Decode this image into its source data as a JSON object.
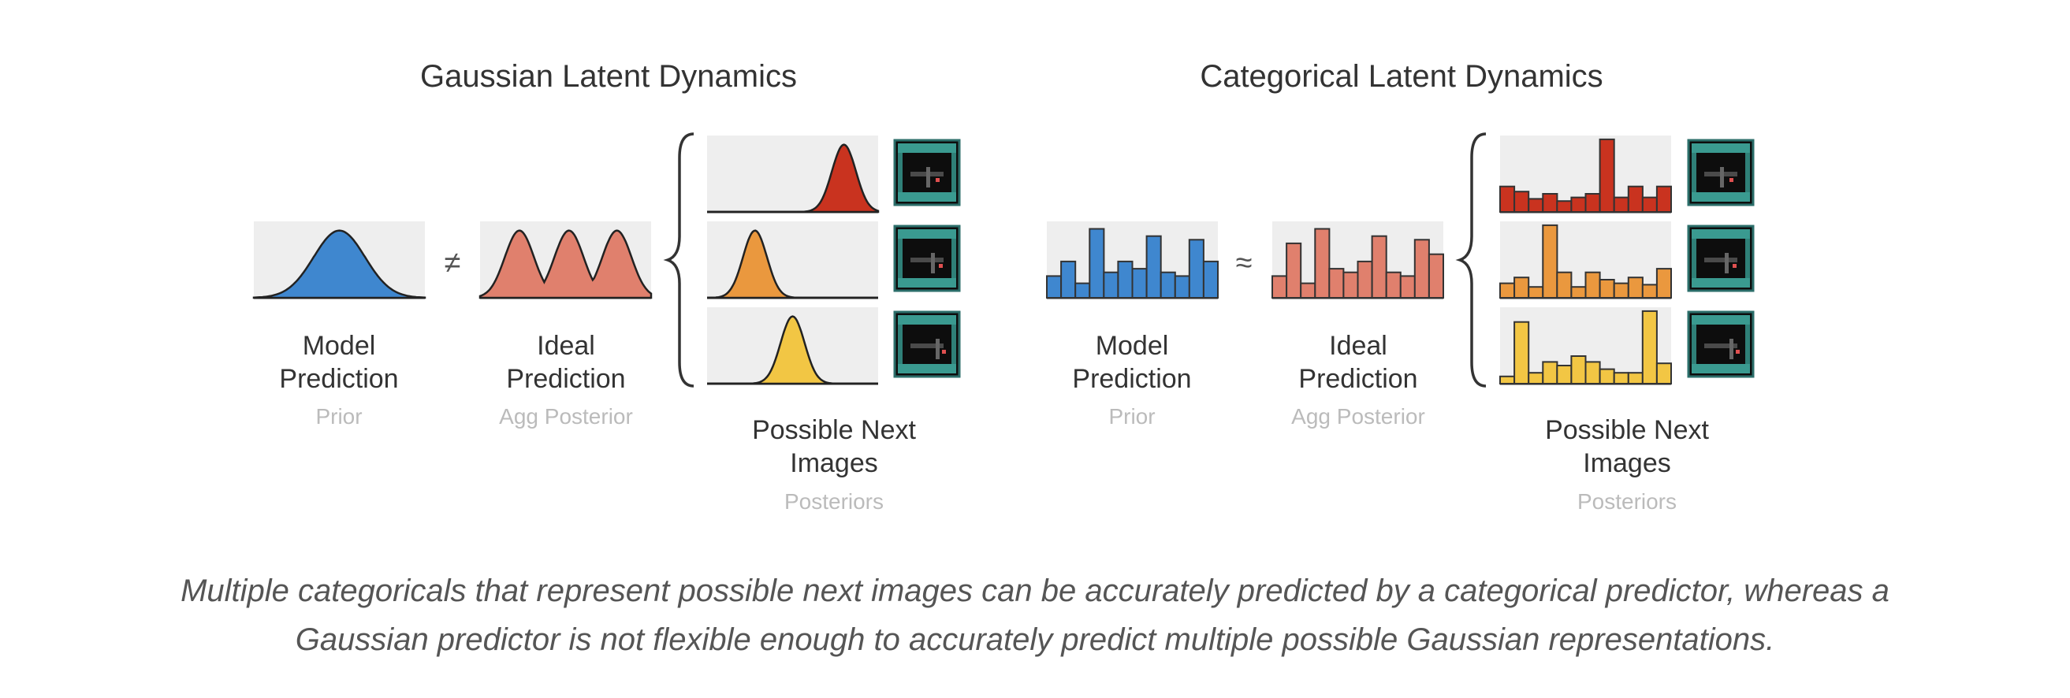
{
  "panels": [
    {
      "title": "Gaussian Latent Dynamics",
      "type": "gaussian",
      "operator": "≠",
      "model": {
        "label1": "Model",
        "label2": "Prediction",
        "sub": "Prior"
      },
      "ideal": {
        "label1": "Ideal",
        "label2": "Prediction",
        "sub": "Agg Posterior"
      },
      "next": {
        "label1": "Possible Next",
        "label2": "Images",
        "sub": "Posteriors"
      },
      "model_dist": {
        "peaks": [
          0.5
        ]
      },
      "ideal_dist": {
        "peaks": [
          0.23,
          0.52,
          0.8
        ]
      },
      "posteriors": [
        {
          "peaks": [
            0.8
          ]
        },
        {
          "peaks": [
            0.28
          ]
        },
        {
          "peaks": [
            0.5
          ]
        }
      ]
    },
    {
      "title": "Categorical Latent Dynamics",
      "type": "categorical",
      "operator": "≈",
      "model": {
        "label1": "Model",
        "label2": "Prediction",
        "sub": "Prior"
      },
      "ideal": {
        "label1": "Ideal",
        "label2": "Prediction",
        "sub": "Agg Posterior"
      },
      "next": {
        "label1": "Possible Next",
        "label2": "Images",
        "sub": "Posteriors"
      },
      "model_dist": {
        "bars": [
          0.3,
          0.5,
          0.2,
          0.95,
          0.35,
          0.5,
          0.4,
          0.85,
          0.35,
          0.3,
          0.8,
          0.5
        ]
      },
      "ideal_dist": {
        "bars": [
          0.3,
          0.75,
          0.2,
          0.95,
          0.4,
          0.35,
          0.5,
          0.85,
          0.35,
          0.3,
          0.8,
          0.6
        ]
      },
      "posteriors": [
        {
          "bars": [
            0.35,
            0.28,
            0.18,
            0.25,
            0.15,
            0.2,
            0.25,
            1.0,
            0.2,
            0.35,
            0.2,
            0.35
          ]
        },
        {
          "bars": [
            0.2,
            0.28,
            0.15,
            1.0,
            0.35,
            0.15,
            0.35,
            0.25,
            0.2,
            0.28,
            0.18,
            0.4
          ]
        },
        {
          "bars": [
            0.1,
            0.85,
            0.15,
            0.3,
            0.25,
            0.38,
            0.3,
            0.2,
            0.15,
            0.15,
            1.0,
            0.28
          ]
        }
      ]
    }
  ],
  "colors": {
    "model": "#3f87cf",
    "ideal": "#e0806d",
    "posteriors": [
      "#c9331f",
      "#ea983e",
      "#f2c644"
    ],
    "background": "#eeeeee"
  },
  "caption": {
    "line1": "Multiple categoricals that represent possible next images can be accurately predicted by a categorical predictor, whereas a",
    "line2": "Gaussian predictor is not flexible enough to accurately predict multiple possible Gaussian representations."
  }
}
